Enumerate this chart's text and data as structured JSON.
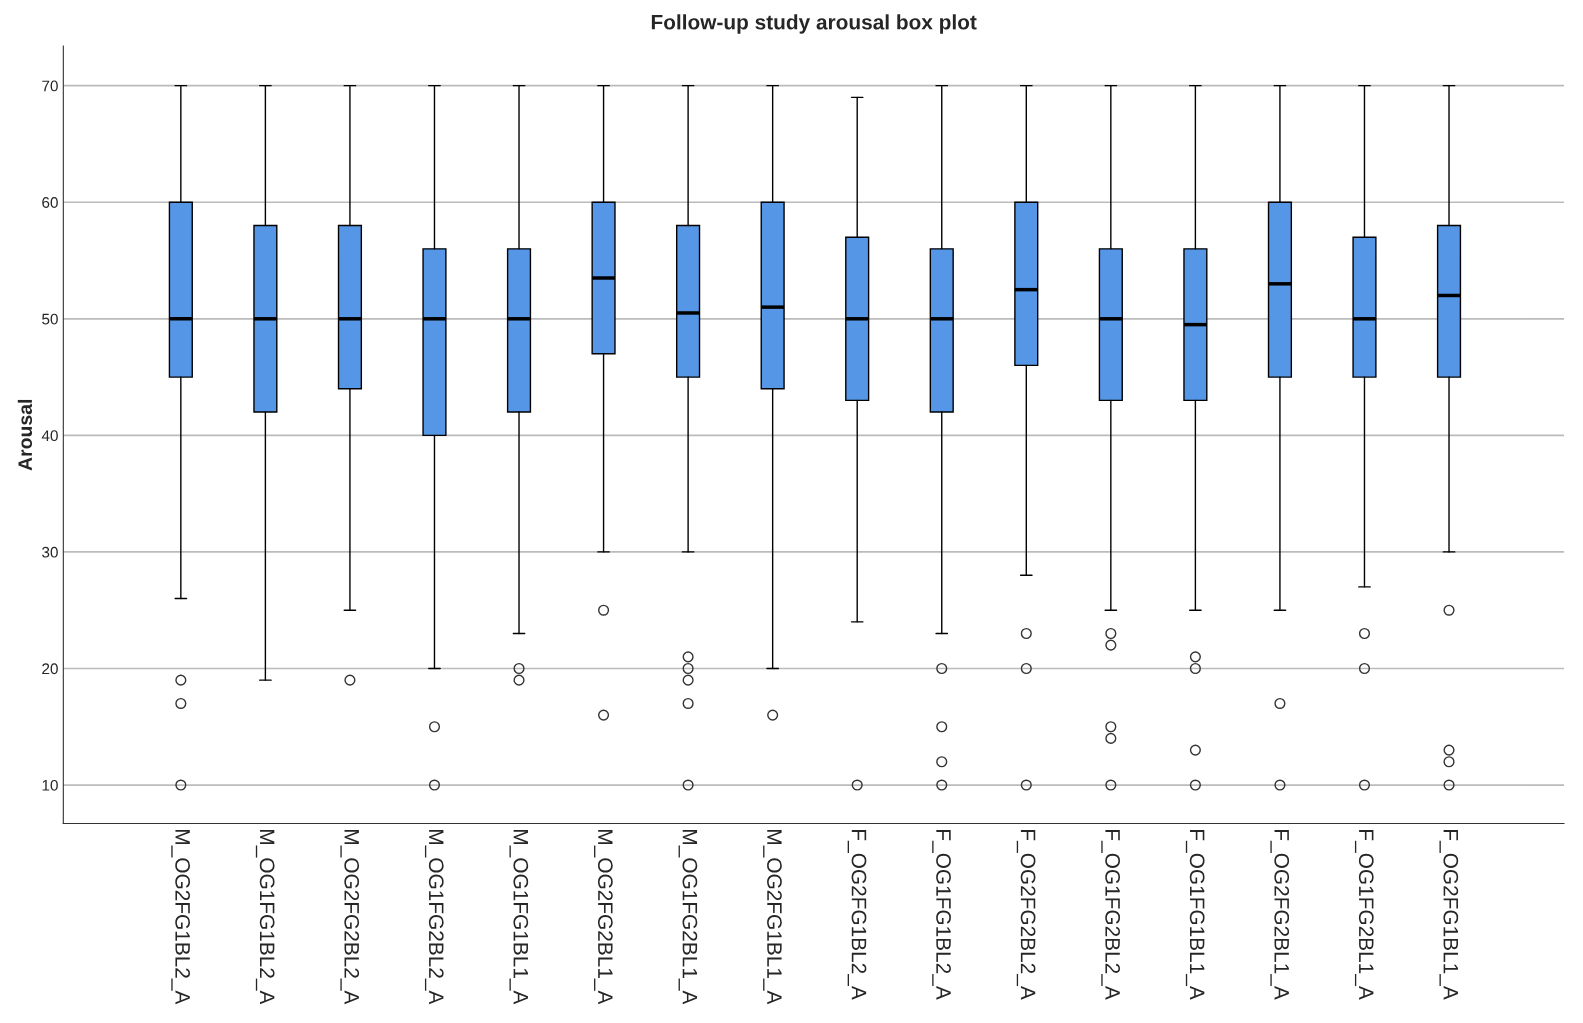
{
  "chart_data": {
    "type": "box",
    "title": "Follow-up study arousal box plot",
    "ylabel": "Arousal",
    "categories": [
      "M_OG2FG1BL2_A",
      "M_OG1FG1BL2_A",
      "M_OG2FG2BL2_A",
      "M_OG1FG2BL2_A",
      "M_OG1FG1BL1_A",
      "M_OG2FG2BL1_A",
      "M_OG1FG2BL1_A",
      "M_OG2FG1BL1_A",
      "F_OG2FG1BL2_A",
      "F_OG1FG1BL2_A",
      "F_OG2FG2BL2_A",
      "F_OG1FG2BL2_A",
      "F_OG1FG1BL1_A",
      "F_OG2FG2BL1_A",
      "F_OG1FG2BL1_A",
      "F_OG2FG1BL1_A"
    ],
    "color": "#5596e6",
    "boxes": [
      {
        "low": 26,
        "q1": 45,
        "median": 50,
        "q3": 60,
        "high": 70,
        "outliers": [
          19,
          17,
          10
        ]
      },
      {
        "low": 19,
        "q1": 42,
        "median": 50,
        "q3": 58,
        "high": 70
      },
      {
        "low": 25,
        "q1": 44,
        "median": 50,
        "q3": 58,
        "high": 70,
        "outliers": [
          19
        ]
      },
      {
        "low": 20,
        "q1": 40,
        "median": 50,
        "q3": 56,
        "high": 70,
        "outliers": [
          15,
          10
        ]
      },
      {
        "low": 23,
        "q1": 42,
        "median": 50,
        "q3": 56,
        "high": 70,
        "outliers": [
          20,
          19
        ]
      },
      {
        "low": 30,
        "q1": 47,
        "median": 53.5,
        "q3": 60,
        "high": 70,
        "outliers": [
          25,
          16
        ]
      },
      {
        "low": 30,
        "q1": 45,
        "median": 50.5,
        "q3": 58,
        "high": 70,
        "outliers": [
          21,
          20,
          19,
          17,
          10
        ]
      },
      {
        "low": 20,
        "q1": 44,
        "median": 51,
        "q3": 60,
        "high": 70,
        "outliers": [
          16
        ]
      },
      {
        "low": 24,
        "q1": 43,
        "median": 50,
        "q3": 57,
        "high": 69,
        "outliers": [
          10
        ]
      },
      {
        "low": 23,
        "q1": 42,
        "median": 50,
        "q3": 56,
        "high": 70,
        "outliers": [
          20,
          15,
          12,
          10
        ]
      },
      {
        "low": 28,
        "q1": 46,
        "median": 52.5,
        "q3": 60,
        "high": 70,
        "outliers": [
          23,
          20,
          10
        ]
      },
      {
        "low": 25,
        "q1": 43,
        "median": 50,
        "q3": 56,
        "high": 70,
        "outliers": [
          23,
          22,
          15,
          14,
          10
        ]
      },
      {
        "low": 25,
        "q1": 43,
        "median": 49.5,
        "q3": 56,
        "high": 70,
        "outliers": [
          21,
          20,
          13,
          10
        ]
      },
      {
        "low": 25,
        "q1": 45,
        "median": 53,
        "q3": 60,
        "high": 70,
        "outliers": [
          17,
          10
        ]
      },
      {
        "low": 27,
        "q1": 45,
        "median": 50,
        "q3": 57,
        "high": 70,
        "outliers": [
          23,
          20,
          10
        ]
      },
      {
        "low": 30,
        "q1": 45,
        "median": 52,
        "q3": 58,
        "high": 70,
        "outliers": [
          25,
          13,
          12,
          10
        ]
      }
    ],
    "ylim": [
      6.7,
      73.4
    ],
    "yticks": [
      10,
      20,
      30,
      40,
      50,
      60,
      70
    ],
    "grid": "y",
    "legend": false
  }
}
